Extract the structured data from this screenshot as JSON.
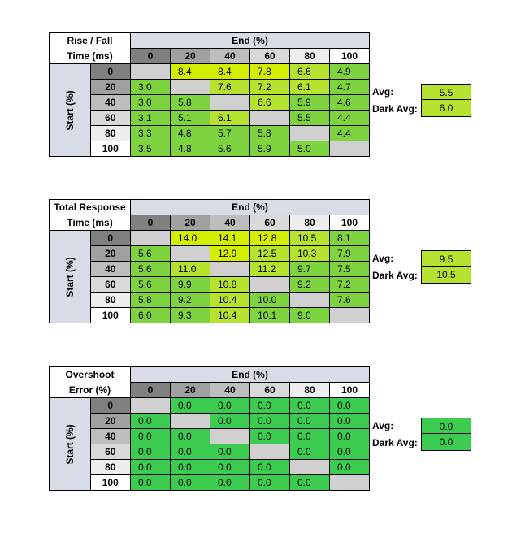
{
  "tables": [
    {
      "label": [
        "Rise / Fall",
        "Time (ms)"
      ],
      "end_header": "End (%)",
      "start_header": "Start (%)",
      "columns": [
        "0",
        "20",
        "40",
        "60",
        "80",
        "100"
      ],
      "rows": [
        {
          "start": "0",
          "cells": [
            "",
            "8.4",
            "8.4",
            "7.8",
            "6.6",
            "4.9"
          ]
        },
        {
          "start": "20",
          "cells": [
            "3.0",
            "",
            "7.6",
            "7.2",
            "6.1",
            "4.7"
          ]
        },
        {
          "start": "40",
          "cells": [
            "3.0",
            "5.8",
            "",
            "6.6",
            "5.9",
            "4.6"
          ]
        },
        {
          "start": "60",
          "cells": [
            "3.1",
            "5.1",
            "6.1",
            "",
            "5.5",
            "4.4"
          ]
        },
        {
          "start": "80",
          "cells": [
            "3.3",
            "4.8",
            "5.7",
            "5.8",
            "",
            "4.4"
          ]
        },
        {
          "start": "100",
          "cells": [
            "3.5",
            "4.8",
            "5.6",
            "5.9",
            "5.0",
            ""
          ]
        }
      ],
      "avg_label": "Avg:",
      "avg": "5.5",
      "dark_avg_label": "Dark Avg:",
      "dark_avg": "6.0"
    },
    {
      "label": [
        "Total Response",
        "Time (ms)"
      ],
      "end_header": "End (%)",
      "start_header": "Start (%)",
      "columns": [
        "0",
        "20",
        "40",
        "60",
        "80",
        "100"
      ],
      "rows": [
        {
          "start": "0",
          "cells": [
            "",
            "14.0",
            "14.1",
            "12.8",
            "10.5",
            "8.1"
          ]
        },
        {
          "start": "20",
          "cells": [
            "5.6",
            "",
            "12.9",
            "12.5",
            "10.3",
            "7.9"
          ]
        },
        {
          "start": "40",
          "cells": [
            "5.6",
            "11.0",
            "",
            "11.2",
            "9.7",
            "7.5"
          ]
        },
        {
          "start": "60",
          "cells": [
            "5.6",
            "9.9",
            "10.8",
            "",
            "9.2",
            "7.2"
          ]
        },
        {
          "start": "80",
          "cells": [
            "5.8",
            "9.2",
            "10.4",
            "10.0",
            "",
            "7.6"
          ]
        },
        {
          "start": "100",
          "cells": [
            "6.0",
            "9.3",
            "10.4",
            "10.1",
            "9.0",
            ""
          ]
        }
      ],
      "avg_label": "Avg:",
      "avg": "9.5",
      "dark_avg_label": "Dark Avg:",
      "dark_avg": "10.5"
    },
    {
      "label": [
        "Overshoot",
        "Error (%)"
      ],
      "end_header": "End (%)",
      "start_header": "Start (%)",
      "columns": [
        "0",
        "20",
        "40",
        "60",
        "80",
        "100"
      ],
      "rows": [
        {
          "start": "0",
          "cells": [
            "",
            "0.0",
            "0.0",
            "0.0",
            "0.0",
            "0.0"
          ]
        },
        {
          "start": "20",
          "cells": [
            "0.0",
            "",
            "0.0",
            "0.0",
            "0.0",
            "0.0"
          ]
        },
        {
          "start": "40",
          "cells": [
            "0.0",
            "0.0",
            "",
            "0.0",
            "0.0",
            "0.0"
          ]
        },
        {
          "start": "60",
          "cells": [
            "0.0",
            "0.0",
            "0.0",
            "",
            "0.0",
            "0.0"
          ]
        },
        {
          "start": "80",
          "cells": [
            "0.0",
            "0.0",
            "0.0",
            "0.0",
            "",
            "0.0"
          ]
        },
        {
          "start": "100",
          "cells": [
            "0.0",
            "0.0",
            "0.0",
            "0.0",
            "0.0",
            ""
          ]
        }
      ],
      "avg_label": "Avg:",
      "avg": "0.0",
      "dark_avg_label": "Dark Avg:",
      "dark_avg": "0.0"
    }
  ],
  "colors": {
    "header_blue": "#d7dce6",
    "diag_gray": "#d0d0d0",
    "yellow": "#d4ee00",
    "yellow_green": "#b6e330",
    "green": "#7ed43e",
    "overshoot_green": "#3ccc50",
    "gray_scale": [
      "#808080",
      "#a0a0a0",
      "#bdbdbd",
      "#d9d9d9",
      "#eeeeee",
      "#ffffff"
    ]
  }
}
